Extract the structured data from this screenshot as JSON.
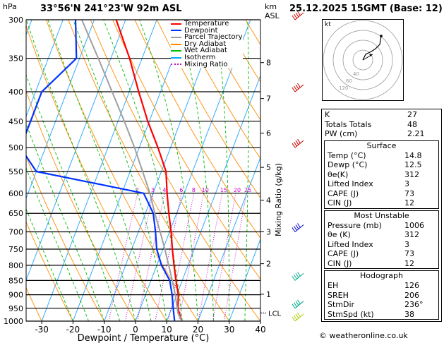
{
  "header": {
    "units_left": "hPa",
    "location": "33°56'N  241°23'W  92m  ASL",
    "units_right_km": "km",
    "units_right_asl": "ASL",
    "datetime": "25.12.2025  15GMT  (Base: 12)"
  },
  "legend": {
    "items": [
      {
        "label": "Temperature",
        "color": "#ff0000",
        "style": "solid"
      },
      {
        "label": "Dewpoint",
        "color": "#0033ff",
        "style": "solid"
      },
      {
        "label": "Parcel Trajectory",
        "color": "#a0a0a0",
        "style": "solid"
      },
      {
        "label": "Dry Adiabat",
        "color": "#ff8c00",
        "style": "solid"
      },
      {
        "label": "Wet Adiabat",
        "color": "#00bb00",
        "style": "solid"
      },
      {
        "label": "Isotherm",
        "color": "#00aaff",
        "style": "solid"
      },
      {
        "label": "Mixing Ratio",
        "color": "#cc00cc",
        "style": "dotted"
      }
    ]
  },
  "chart_data": {
    "type": "line",
    "xlabel": "Dewpoint / Temperature (°C)",
    "ylabel_right": "Mixing Ratio (g/kg)",
    "pressure_levels": [
      300,
      350,
      400,
      450,
      500,
      550,
      600,
      650,
      700,
      750,
      800,
      850,
      900,
      950,
      1000
    ],
    "x_ticks": [
      -30,
      -20,
      -10,
      0,
      10,
      20,
      30,
      40
    ],
    "xlim": [
      -35,
      40
    ],
    "ylim": [
      1000,
      300
    ],
    "skew_px_per_log": 0,
    "km_ticks": [
      {
        "km": "8",
        "p": 356
      },
      {
        "km": "7",
        "p": 411
      },
      {
        "km": "6",
        "p": 472
      },
      {
        "km": "5",
        "p": 541
      },
      {
        "km": "4",
        "p": 617
      },
      {
        "km": "3",
        "p": 700
      },
      {
        "km": "2",
        "p": 795
      },
      {
        "km": "1",
        "p": 898
      }
    ],
    "lcl_label": "LCL",
    "lcl_p": 968,
    "mixing_ratio_labels": [
      "2",
      "3",
      "4",
      "6",
      "8",
      "10",
      "15",
      "20",
      "25"
    ],
    "series": [
      {
        "name": "Temperature",
        "color": "#ff0000",
        "points": [
          [
            1000,
            14.8
          ],
          [
            950,
            12.0
          ],
          [
            900,
            10.5
          ],
          [
            850,
            8.0
          ],
          [
            800,
            5.5
          ],
          [
            750,
            3.0
          ],
          [
            700,
            0.5
          ],
          [
            650,
            -2.5
          ],
          [
            600,
            -5.5
          ],
          [
            550,
            -8.5
          ],
          [
            500,
            -14.0
          ],
          [
            450,
            -20.5
          ],
          [
            400,
            -27.0
          ],
          [
            350,
            -34.0
          ],
          [
            300,
            -43.0
          ]
        ]
      },
      {
        "name": "Dewpoint",
        "color": "#0033ff",
        "points": [
          [
            1000,
            12.5
          ],
          [
            950,
            10.5
          ],
          [
            900,
            8.5
          ],
          [
            850,
            6.0
          ],
          [
            800,
            1.5
          ],
          [
            750,
            -2.0
          ],
          [
            700,
            -4.5
          ],
          [
            650,
            -7.5
          ],
          [
            600,
            -13.0
          ],
          [
            550,
            -50.0
          ],
          [
            500,
            -58.0
          ],
          [
            450,
            -58.0
          ],
          [
            400,
            -58.0
          ],
          [
            350,
            -51.0
          ],
          [
            300,
            -56.0
          ]
        ]
      },
      {
        "name": "Parcel Trajectory",
        "color": "#a0a0a0",
        "points": [
          [
            1000,
            14.8
          ],
          [
            968,
            12.6
          ],
          [
            900,
            9.5
          ],
          [
            850,
            6.8
          ],
          [
            800,
            3.8
          ],
          [
            750,
            0.6
          ],
          [
            700,
            -3.0
          ],
          [
            650,
            -7.0
          ],
          [
            600,
            -11.0
          ],
          [
            550,
            -16.0
          ],
          [
            500,
            -21.5
          ],
          [
            450,
            -28.0
          ],
          [
            400,
            -35.5
          ],
          [
            350,
            -44.0
          ],
          [
            300,
            -54.0
          ]
        ]
      }
    ]
  },
  "indices": {
    "rows": [
      {
        "k": "K",
        "v": "27"
      },
      {
        "k": "Totals Totals",
        "v": "48"
      },
      {
        "k": "PW (cm)",
        "v": "2.21"
      }
    ],
    "surface": {
      "title": "Surface",
      "rows": [
        {
          "k": "Temp (°C)",
          "v": "14.8"
        },
        {
          "k": "Dewp (°C)",
          "v": "12.5"
        },
        {
          "k": "θe(K)",
          "v": "312"
        },
        {
          "k": "Lifted Index",
          "v": "3"
        },
        {
          "k": "CAPE (J)",
          "v": "73"
        },
        {
          "k": "CIN (J)",
          "v": "12"
        }
      ]
    },
    "unstable": {
      "title": "Most Unstable",
      "rows": [
        {
          "k": "Pressure (mb)",
          "v": "1006"
        },
        {
          "k": "θe (K)",
          "v": "312"
        },
        {
          "k": "Lifted Index",
          "v": "3"
        },
        {
          "k": "CAPE (J)",
          "v": "73"
        },
        {
          "k": "CIN (J)",
          "v": "12"
        }
      ]
    },
    "hodograph": {
      "title": "Hodograph",
      "rows": [
        {
          "k": "EH",
          "v": "126"
        },
        {
          "k": "SREH",
          "v": "206"
        },
        {
          "k": "StmDir",
          "v": "236°"
        },
        {
          "k": "StmSpd (kt)",
          "v": "38"
        }
      ]
    }
  },
  "hodo": {
    "label": "kt",
    "ring_labels": [
      "40",
      "60",
      "120"
    ]
  },
  "footer": {
    "copyright": "© weatheronline.co.uk"
  }
}
